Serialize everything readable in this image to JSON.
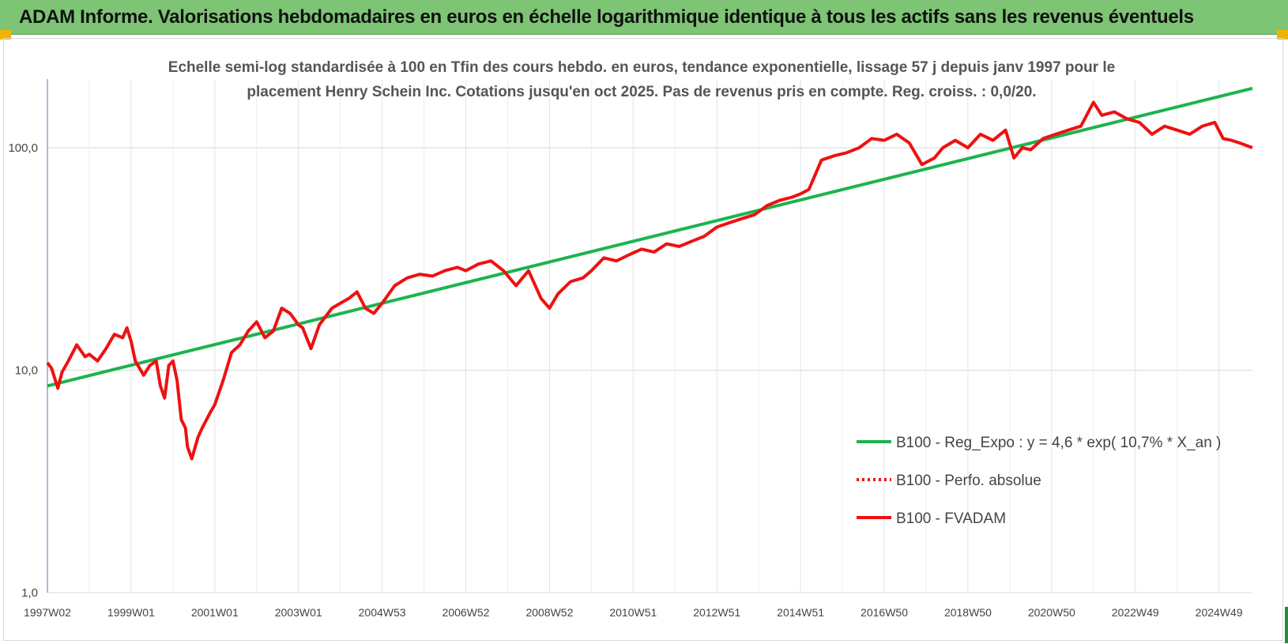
{
  "banner": {
    "title": "ADAM Informe. Valorisations hebdomadaires en euros en échelle logarithmique identique à tous les actifs sans les revenus éventuels"
  },
  "chart_data": {
    "type": "line",
    "title_lines": [
      "Echelle semi-log standardisée à 100 en Tfin des cours hebdo. en euros, tendance exponentielle, lissage 57 j depuis janv 1997 pour le",
      "placement Henry Schein Inc. Cotations jusqu'en oct 2025.  Pas de revenus pris en compte. Reg. croiss. : 0,0/20."
    ],
    "y_scale": "log",
    "ylim": [
      1,
      200
    ],
    "y_ticks": [
      {
        "value": 1,
        "label": "1,0"
      },
      {
        "value": 10,
        "label": "10,0"
      },
      {
        "value": 100,
        "label": "100,0"
      }
    ],
    "x_range": [
      1997.0,
      2025.8
    ],
    "x_ticks": [
      {
        "value": 1997.0,
        "label": "1997W02"
      },
      {
        "value": 1999.0,
        "label": "1999W01"
      },
      {
        "value": 2001.0,
        "label": "2001W01"
      },
      {
        "value": 2003.0,
        "label": "2003W01"
      },
      {
        "value": 2005.0,
        "label": "2004W53"
      },
      {
        "value": 2007.0,
        "label": "2006W52"
      },
      {
        "value": 2009.0,
        "label": "2008W52"
      },
      {
        "value": 2011.0,
        "label": "2010W51"
      },
      {
        "value": 2013.0,
        "label": "2012W51"
      },
      {
        "value": 2015.0,
        "label": "2014W51"
      },
      {
        "value": 2017.0,
        "label": "2016W50"
      },
      {
        "value": 2019.0,
        "label": "2018W50"
      },
      {
        "value": 2021.0,
        "label": "2020W50"
      },
      {
        "value": 2023.0,
        "label": "2022W49"
      },
      {
        "value": 2025.0,
        "label": "2024W49"
      }
    ],
    "grid": "vertical and horizontal",
    "legend_position": "bottom-right",
    "series": [
      {
        "name": "B100 - Reg_Expo : y = 4,6 * exp( 10,7% *  X_an )",
        "color": "#1db34f",
        "style": "solid",
        "x": [
          1997.0,
          2025.8
        ],
        "y": [
          8.5,
          185
        ]
      },
      {
        "name": "B100 - Perfo. absolue",
        "color": "#ee1111",
        "style": "dotted",
        "x": [],
        "y": []
      },
      {
        "name": "B100 - FVADAM",
        "color": "#ee1111",
        "style": "solid",
        "x": [
          1997.0,
          1997.1,
          1997.25,
          1997.35,
          1997.5,
          1997.7,
          1997.9,
          1998.0,
          1998.2,
          1998.4,
          1998.6,
          1998.8,
          1998.9,
          1999.0,
          1999.1,
          1999.3,
          1999.45,
          1999.6,
          1999.7,
          1999.8,
          1999.9,
          2000.0,
          2000.1,
          2000.2,
          2000.3,
          2000.35,
          2000.45,
          2000.6,
          2000.7,
          2000.9,
          2001.0,
          2001.2,
          2001.4,
          2001.6,
          2001.8,
          2002.0,
          2002.2,
          2002.4,
          2002.6,
          2002.8,
          2003.0,
          2003.1,
          2003.3,
          2003.5,
          2003.8,
          2004.0,
          2004.2,
          2004.4,
          2004.6,
          2004.8,
          2005.0,
          2005.3,
          2005.6,
          2005.9,
          2006.2,
          2006.5,
          2006.8,
          2007.0,
          2007.3,
          2007.6,
          2007.9,
          2008.2,
          2008.5,
          2008.8,
          2009.0,
          2009.2,
          2009.5,
          2009.8,
          2010.0,
          2010.3,
          2010.6,
          2010.9,
          2011.2,
          2011.5,
          2011.8,
          2012.1,
          2012.4,
          2012.7,
          2013.0,
          2013.3,
          2013.6,
          2013.9,
          2014.2,
          2014.5,
          2014.8,
          2015.0,
          2015.2,
          2015.5,
          2015.8,
          2016.1,
          2016.4,
          2016.7,
          2017.0,
          2017.3,
          2017.6,
          2017.9,
          2018.2,
          2018.4,
          2018.7,
          2019.0,
          2019.3,
          2019.6,
          2019.9,
          2020.1,
          2020.3,
          2020.5,
          2020.8,
          2021.1,
          2021.4,
          2021.7,
          2022.0,
          2022.2,
          2022.5,
          2022.8,
          2023.1,
          2023.4,
          2023.7,
          2024.0,
          2024.3,
          2024.6,
          2024.9,
          2025.1,
          2025.3,
          2025.5,
          2025.8
        ],
        "y": [
          10.8,
          10.2,
          8.3,
          9.8,
          11.0,
          13.0,
          11.5,
          11.8,
          11.0,
          12.5,
          14.5,
          14.0,
          15.5,
          13.5,
          11.0,
          9.5,
          10.5,
          11.0,
          8.5,
          7.5,
          10.5,
          11.0,
          9.0,
          6.0,
          5.5,
          4.5,
          4.0,
          5.0,
          5.5,
          6.5,
          7.0,
          9.0,
          12.0,
          13.0,
          15.0,
          16.5,
          14.0,
          15.0,
          19.0,
          18.0,
          16.0,
          15.5,
          12.5,
          16.0,
          19.0,
          20.0,
          21.0,
          22.5,
          19.0,
          18.0,
          20.0,
          24.0,
          26.0,
          27.0,
          26.5,
          28.0,
          29.0,
          28.0,
          30.0,
          31.0,
          28.0,
          24.0,
          28.0,
          21.0,
          19.0,
          22.0,
          25.0,
          26.0,
          28.0,
          32.0,
          31.0,
          33.0,
          35.0,
          34.0,
          37.0,
          36.0,
          38.0,
          40.0,
          44.0,
          46.0,
          48.0,
          50.0,
          55.0,
          58.0,
          60.0,
          62.0,
          65.0,
          88.0,
          92.0,
          95.0,
          100.0,
          110.0,
          108.0,
          115.0,
          105.0,
          84.0,
          90.0,
          100.0,
          108.0,
          100.0,
          115.0,
          108.0,
          120.0,
          90.0,
          100.0,
          98.0,
          110.0,
          115.0,
          120.0,
          125.0,
          160.0,
          140.0,
          145.0,
          135.0,
          130.0,
          115.0,
          125.0,
          120.0,
          115.0,
          125.0,
          130.0,
          110.0,
          108.0,
          105.0,
          100.0
        ]
      }
    ]
  }
}
